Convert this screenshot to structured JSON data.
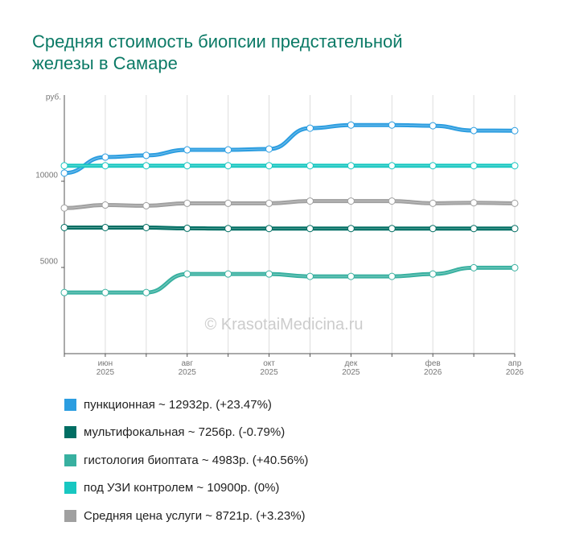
{
  "chart_data": {
    "type": "line",
    "title": "Средняя стоимость биопсии предстательной железы в Самаре",
    "y_label": "руб.",
    "annotation": "© KrasotaiMedicina.ru",
    "categories": [
      null,
      [
        "июн",
        "2025"
      ],
      null,
      [
        "авг",
        "2025"
      ],
      null,
      [
        "окт",
        "2025"
      ],
      null,
      [
        "дек",
        "2025"
      ],
      null,
      [
        "фев",
        "2026"
      ],
      null,
      [
        "апр",
        "2026"
      ]
    ],
    "series": [
      {
        "name": "пункционная ~ 12932р. (+23.47%)",
        "color": "#2b9de0",
        "values": [
          10474,
          11400,
          11500,
          11820,
          11820,
          11870,
          13080,
          13260,
          13260,
          13220,
          12940,
          12932
        ]
      },
      {
        "name": "мультифокальная ~ 7256р. (-0.79%)",
        "color": "#006e63",
        "values": [
          7314,
          7314,
          7314,
          7270,
          7256,
          7256,
          7256,
          7256,
          7256,
          7256,
          7256,
          7256
        ]
      },
      {
        "name": "гистология биоптата ~ 4983р. (+40.56%)",
        "color": "#38b0a0",
        "values": [
          3545,
          3545,
          3545,
          4620,
          4620,
          4620,
          4480,
          4480,
          4480,
          4620,
          4983,
          4983
        ]
      },
      {
        "name": "под УЗИ контролем ~ 10900р. (0%)",
        "color": "#18c7c1",
        "values": [
          10900,
          10900,
          10900,
          10900,
          10900,
          10900,
          10900,
          10900,
          10900,
          10900,
          10900,
          10900
        ]
      },
      {
        "name": "Средняя цена услуги ~ 8721р. (+3.23%)",
        "color": "#a0a0a0",
        "values": [
          8448,
          8620,
          8580,
          8720,
          8720,
          8720,
          8850,
          8850,
          8850,
          8721,
          8750,
          8721
        ]
      }
    ],
    "ylim": [
      0,
      15000
    ],
    "yticks": [
      5000,
      10000
    ],
    "grid": true
  }
}
